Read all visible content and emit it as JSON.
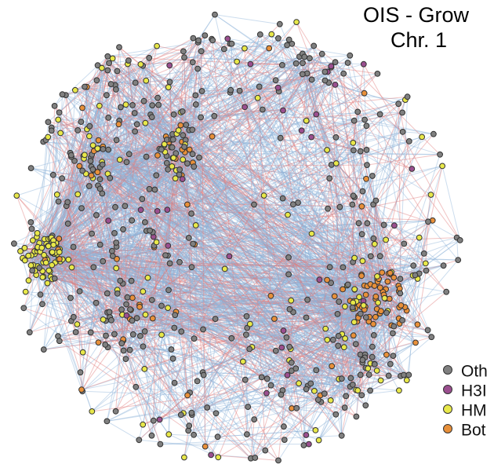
{
  "figure": {
    "title_line1": "OIS - Grow",
    "title_line2": "Chr. 1"
  },
  "legend": [
    {
      "label": "Oth",
      "color": "#808080"
    },
    {
      "label": "H3I",
      "color": "#9b4f8f"
    },
    {
      "label": "HM",
      "color": "#e8e84a"
    },
    {
      "label": "Bot",
      "color": "#e8903a"
    }
  ],
  "edge_colors": {
    "blue": "#8fb4d9",
    "red": "#e07a7a"
  },
  "node_border_color": "#333333"
}
